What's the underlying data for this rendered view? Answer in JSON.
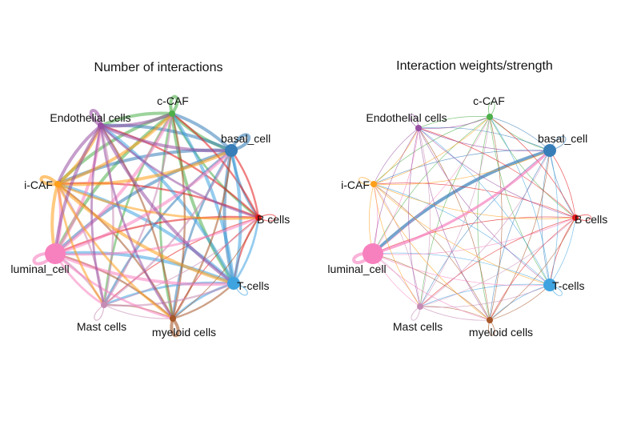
{
  "panels": [
    {
      "title": "Number of interactions",
      "mode": "count"
    },
    {
      "title": "Interaction weights/strength",
      "mode": "weight"
    }
  ],
  "nodes": [
    {
      "id": "c-CAF",
      "label": "c-CAF",
      "color": "#4daf4a",
      "size": "small"
    },
    {
      "id": "basal_cell",
      "label": "basal_cell",
      "color": "#377eb8",
      "size": "medium"
    },
    {
      "id": "B cells",
      "label": "B cells",
      "color": "#e41a1c",
      "size": "small"
    },
    {
      "id": "T-cells",
      "label": "T-cells",
      "color": "#3fa3e0",
      "size": "medium"
    },
    {
      "id": "myeloid cells",
      "label": "myeloid cells",
      "color": "#a65628",
      "size": "small"
    },
    {
      "id": "Mast cells",
      "label": "Mast cells",
      "color": "#c68bb5",
      "size": "small"
    },
    {
      "id": "luminal_cell",
      "label": "luminal_cell",
      "color": "#f781bf",
      "size": "large"
    },
    {
      "id": "i-CAF",
      "label": "i-CAF",
      "color": "#ff9f1a",
      "size": "small"
    },
    {
      "id": "Endothelial cells",
      "label": "Endothelial cells",
      "color": "#984ea3",
      "size": "small"
    }
  ],
  "self_loops": [
    "c-CAF",
    "basal_cell",
    "B cells",
    "T-cells",
    "myeloid cells",
    "Mast cells",
    "luminal_cell",
    "i-CAF",
    "Endothelial cells"
  ]
}
